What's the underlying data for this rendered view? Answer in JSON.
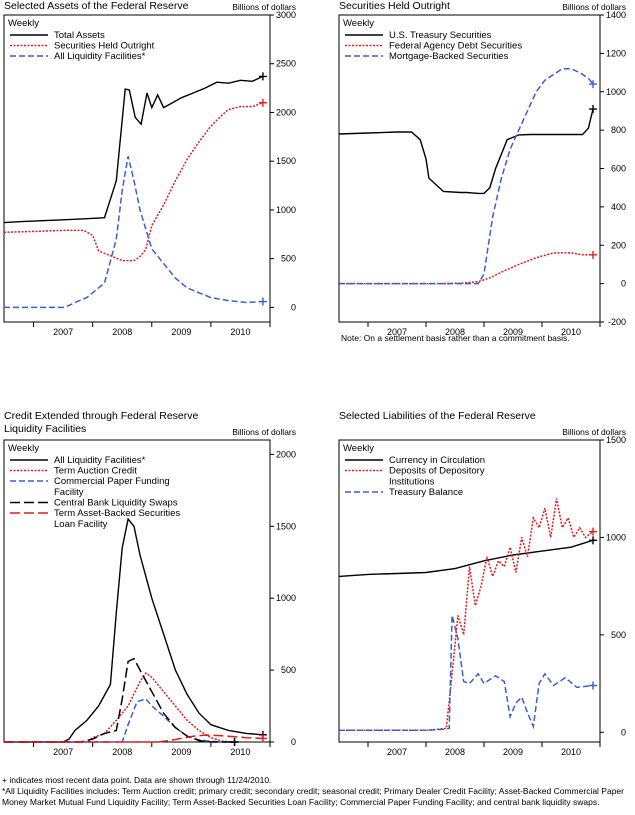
{
  "footnotes": {
    "latest": "+ indicates most recent data point. Data are shown through 11/24/2010.",
    "liquidity": "*All Liquidity Facilities includes: Term Auction credit; primary credit; secondary credit; seasonal credit; Primary Dealer Credit Facility; Asset-Backed Commercial Paper Money Market Mutual Fund Liquidity Facility; Term Asset-Backed Securities Loan Facility; Commercial Paper Funding Facility; and central bank liquidity swaps."
  },
  "chart_data": [
    {
      "type": "line",
      "title": "Selected Assets of the Federal Reserve",
      "frequency": "Weekly",
      "ylabel": "Billions of dollars",
      "ylim": [
        -150,
        3000
      ],
      "yticks": [
        0,
        500,
        1000,
        1500,
        2000,
        2500,
        3000
      ],
      "xticks": [
        "2007",
        "2008",
        "2009",
        "2010"
      ],
      "xlim": [
        2006.5,
        2011.0
      ],
      "legend_position": "top-left",
      "series": [
        {
          "name": "Total Assets",
          "color": "#000000",
          "style": "solid",
          "x": [
            2006.5,
            2006.8,
            2007.2,
            2007.55,
            2007.9,
            2008.2,
            2008.4,
            2008.55,
            2008.62,
            2008.72,
            2008.82,
            2008.92,
            2009.0,
            2009.1,
            2009.2,
            2009.35,
            2009.5,
            2009.7,
            2009.9,
            2010.1,
            2010.3,
            2010.5,
            2010.7,
            2010.88
          ],
          "y": [
            870,
            880,
            890,
            900,
            910,
            920,
            1300,
            2240,
            2230,
            1950,
            1880,
            2200,
            2050,
            2180,
            2050,
            2100,
            2150,
            2200,
            2250,
            2310,
            2300,
            2330,
            2320,
            2370
          ]
        },
        {
          "name": "Securities Held Outright",
          "color": "#e31a1c",
          "style": "dotted",
          "x": [
            2006.5,
            2007.0,
            2007.5,
            2007.85,
            2008.0,
            2008.1,
            2008.5,
            2008.7,
            2008.75,
            2008.8,
            2008.9,
            2009.0,
            2009.2,
            2009.4,
            2009.6,
            2009.8,
            2010.0,
            2010.2,
            2010.3,
            2010.5,
            2010.7,
            2010.88
          ],
          "y": [
            770,
            780,
            790,
            790,
            740,
            580,
            480,
            480,
            500,
            520,
            600,
            840,
            1050,
            1300,
            1520,
            1700,
            1860,
            1980,
            2030,
            2060,
            2060,
            2100
          ]
        },
        {
          "name": "All Liquidity Facilities*",
          "color": "#3a5fcd",
          "style": "dashed",
          "x": [
            2006.5,
            2007.5,
            2007.6,
            2007.7,
            2007.9,
            2008.2,
            2008.4,
            2008.5,
            2008.6,
            2008.7,
            2008.8,
            2008.9,
            2009.0,
            2009.2,
            2009.4,
            2009.6,
            2009.8,
            2010.0,
            2010.3,
            2010.6,
            2010.88
          ],
          "y": [
            0,
            0,
            20,
            50,
            100,
            250,
            700,
            1200,
            1550,
            1300,
            1000,
            800,
            600,
            450,
            300,
            200,
            150,
            100,
            70,
            50,
            60
          ]
        }
      ]
    },
    {
      "type": "line",
      "title": "Securities Held Outright",
      "frequency": "Weekly",
      "ylabel": "Billions of dollars",
      "ylim": [
        -200,
        1400
      ],
      "yticks": [
        -200,
        0,
        200,
        400,
        600,
        800,
        1000,
        1200,
        1400
      ],
      "xticks": [
        "2007",
        "2008",
        "2009",
        "2010"
      ],
      "xlim": [
        2006.5,
        2011.0
      ],
      "note": "Note: On a settlement basis rather than a commitment basis.",
      "legend_position": "top-left",
      "series": [
        {
          "name": "U.S. Treasury Securities",
          "color": "#000000",
          "style": "solid",
          "x": [
            2006.5,
            2007.0,
            2007.5,
            2007.75,
            2007.9,
            2008.0,
            2008.05,
            2008.3,
            2008.6,
            2008.7,
            2008.8,
            2008.9,
            2009.0,
            2009.1,
            2009.2,
            2009.4,
            2009.6,
            2009.8,
            2010.0,
            2010.3,
            2010.5,
            2010.7,
            2010.8,
            2010.88
          ],
          "y": [
            780,
            785,
            790,
            790,
            750,
            650,
            550,
            480,
            475,
            475,
            473,
            470,
            470,
            500,
            600,
            750,
            775,
            777,
            777,
            777,
            777,
            777,
            810,
            910
          ]
        },
        {
          "name": "Federal Agency Debt Securities",
          "color": "#e31a1c",
          "style": "dotted",
          "x": [
            2006.5,
            2008.3,
            2008.6,
            2008.9,
            2009.1,
            2009.3,
            2009.6,
            2009.9,
            2010.2,
            2010.5,
            2010.7,
            2010.88
          ],
          "y": [
            0,
            0,
            2,
            10,
            30,
            60,
            100,
            135,
            160,
            160,
            150,
            150
          ]
        },
        {
          "name": "Mortgage-Backed Securities",
          "color": "#3a5fcd",
          "style": "dashed",
          "x": [
            2006.5,
            2008.9,
            2009.0,
            2009.05,
            2009.15,
            2009.3,
            2009.45,
            2009.6,
            2009.75,
            2009.9,
            2010.05,
            2010.2,
            2010.35,
            2010.5,
            2010.65,
            2010.8,
            2010.88
          ],
          "y": [
            0,
            0,
            50,
            150,
            350,
            550,
            700,
            800,
            900,
            1000,
            1060,
            1090,
            1120,
            1120,
            1100,
            1070,
            1040
          ]
        }
      ]
    },
    {
      "type": "line",
      "title": "Credit Extended through Federal Reserve Liquidity Facilities",
      "frequency": "Weekly",
      "ylabel": "Billions of dollars",
      "ylim": [
        0,
        2100
      ],
      "yticks": [
        0,
        500,
        1000,
        1500,
        2000
      ],
      "xticks": [
        "2007",
        "2008",
        "2009",
        "2010"
      ],
      "xlim": [
        2006.5,
        2011.0
      ],
      "legend_position": "top-left",
      "series": [
        {
          "name": "All Liquidity Facilities*",
          "color": "#000000",
          "style": "solid",
          "x": [
            2006.5,
            2007.5,
            2007.6,
            2007.7,
            2007.9,
            2008.1,
            2008.3,
            2008.4,
            2008.5,
            2008.6,
            2008.7,
            2008.8,
            2008.9,
            2009.0,
            2009.2,
            2009.4,
            2009.6,
            2009.8,
            2010.0,
            2010.3,
            2010.6,
            2010.88
          ],
          "y": [
            0,
            0,
            20,
            80,
            150,
            250,
            400,
            900,
            1350,
            1550,
            1500,
            1300,
            1150,
            1000,
            750,
            500,
            330,
            200,
            120,
            80,
            60,
            50
          ]
        },
        {
          "name": "Term Auction Credit",
          "color": "#e31a1c",
          "style": "dotted",
          "x": [
            2006.5,
            2007.9,
            2008.0,
            2008.2,
            2008.4,
            2008.6,
            2008.8,
            2008.9,
            2009.0,
            2009.2,
            2009.4,
            2009.6,
            2009.8,
            2010.0,
            2010.2,
            2010.4
          ],
          "y": [
            0,
            0,
            30,
            60,
            150,
            250,
            420,
            480,
            450,
            350,
            250,
            150,
            80,
            30,
            5,
            0
          ]
        },
        {
          "name": "Commercial Paper Funding Facility",
          "color": "#3a5fcd",
          "style": "dashed",
          "x": [
            2006.5,
            2008.5,
            2008.6,
            2008.75,
            2008.9,
            2009.0,
            2009.2,
            2009.4,
            2009.6,
            2009.8,
            2010.0,
            2010.2,
            2010.4
          ],
          "y": [
            0,
            0,
            120,
            280,
            300,
            250,
            180,
            100,
            40,
            15,
            5,
            0,
            0
          ]
        },
        {
          "name": "Central Bank Liquidity Swaps",
          "color": "#000000",
          "style": "longdash",
          "x": [
            2006.5,
            2007.8,
            2008.0,
            2008.2,
            2008.4,
            2008.5,
            2008.6,
            2008.7,
            2008.8,
            2009.0,
            2009.2,
            2009.4,
            2009.6,
            2009.8,
            2010.0,
            2010.4
          ],
          "y": [
            0,
            0,
            20,
            60,
            80,
            300,
            560,
            580,
            500,
            350,
            200,
            100,
            40,
            10,
            0,
            0
          ]
        },
        {
          "name": "Term Asset-Backed Securities Loan Facility",
          "color": "#e31a1c",
          "style": "longdash",
          "x": [
            2006.5,
            2009.1,
            2009.3,
            2009.5,
            2009.7,
            2009.9,
            2010.1,
            2010.3,
            2010.6,
            2010.88
          ],
          "y": [
            0,
            0,
            10,
            25,
            40,
            48,
            45,
            40,
            30,
            25
          ]
        }
      ]
    },
    {
      "type": "line",
      "title": "Selected Liabilities of the Federal Reserve",
      "frequency": "Weekly",
      "ylabel": "Billions of dollars",
      "ylim": [
        -50,
        1500
      ],
      "yticks": [
        0,
        500,
        1000,
        1500
      ],
      "xticks": [
        "2007",
        "2008",
        "2009",
        "2010"
      ],
      "xlim": [
        2006.5,
        2011.0
      ],
      "legend_position": "top-left",
      "series": [
        {
          "name": "Currency in Circulation",
          "color": "#000000",
          "style": "solid",
          "x": [
            2006.5,
            2007.0,
            2007.5,
            2008.0,
            2008.5,
            2009.0,
            2009.5,
            2010.0,
            2010.5,
            2010.88
          ],
          "y": [
            800,
            810,
            815,
            820,
            840,
            880,
            910,
            930,
            950,
            985
          ]
        },
        {
          "name": "Deposits of Depository Institutions",
          "color": "#e31a1c",
          "style": "dotted",
          "x": [
            2006.5,
            2008.0,
            2008.2,
            2008.35,
            2008.45,
            2008.55,
            2008.65,
            2008.75,
            2008.85,
            2008.95,
            2009.05,
            2009.15,
            2009.25,
            2009.35,
            2009.45,
            2009.55,
            2009.65,
            2009.75,
            2009.85,
            2009.95,
            2010.05,
            2010.15,
            2010.25,
            2010.35,
            2010.45,
            2010.55,
            2010.65,
            2010.75,
            2010.88
          ],
          "y": [
            10,
            10,
            15,
            20,
            300,
            600,
            500,
            850,
            650,
            750,
            900,
            800,
            880,
            850,
            950,
            820,
            1000,
            900,
            1100,
            1050,
            1150,
            1000,
            1200,
            1050,
            1100,
            1000,
            1050,
            1000,
            1030
          ]
        },
        {
          "name": "Treasury Balance",
          "color": "#3a5fcd",
          "style": "dashed",
          "x": [
            2006.5,
            2008.0,
            2008.3,
            2008.4,
            2008.45,
            2008.55,
            2008.65,
            2008.75,
            2008.9,
            2009.0,
            2009.2,
            2009.35,
            2009.45,
            2009.55,
            2009.65,
            2009.75,
            2009.85,
            2009.95,
            2010.05,
            2010.2,
            2010.4,
            2010.6,
            2010.88
          ],
          "y": [
            10,
            10,
            15,
            20,
            600,
            480,
            260,
            250,
            300,
            250,
            290,
            260,
            80,
            150,
            180,
            100,
            30,
            250,
            300,
            240,
            280,
            230,
            240
          ]
        }
      ]
    }
  ]
}
